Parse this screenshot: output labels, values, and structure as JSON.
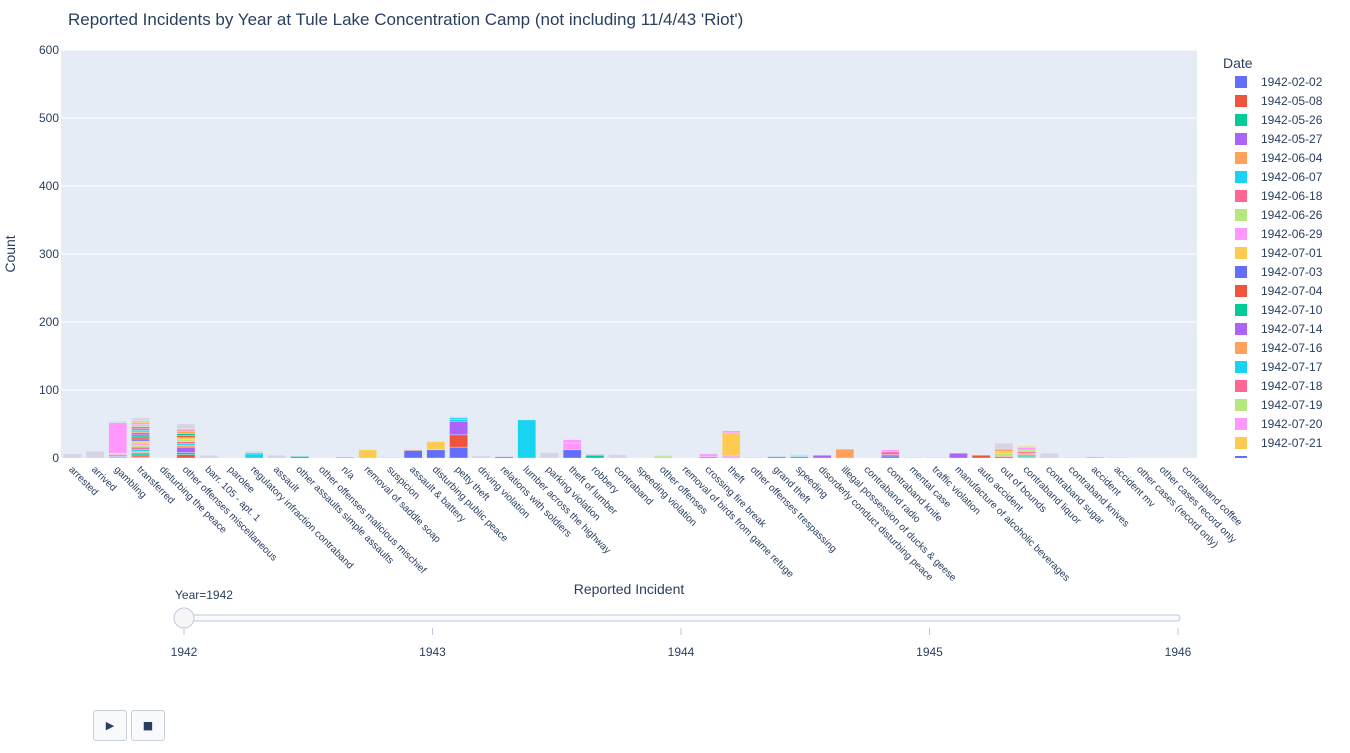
{
  "chart_data": {
    "type": "bar",
    "barmode": "stack",
    "title": "Reported Incidents by Year at Tule Lake Concentration Camp (not including 11/4/43 'Riot')",
    "xlabel": "Reported Incident",
    "ylabel": "Count",
    "ylim": [
      0,
      600
    ],
    "yticks": [
      0,
      100,
      200,
      300,
      400,
      500,
      600
    ],
    "grid": true,
    "legend": {
      "title": "Date",
      "position": "right"
    },
    "categories": [
      "arrested",
      "arrived",
      "gambling",
      "transferred",
      "disturbing the peace",
      "other offenses miscellaneous",
      "barr. 105 - apt. 1",
      "parolee",
      "regulatory infraction contraband",
      "assault",
      "other assaults simple assaults",
      "other offenses malicious mischief",
      "n/a",
      "removal of saddle soap",
      "suspicion",
      "assault & battery",
      "disturbing public peace",
      "petty theft",
      "driving violation",
      "relations with soldiers",
      "lumber across the highway",
      "parking violation",
      "theft of lumber",
      "robbery",
      "contraband",
      "speeding violation",
      "other offenses",
      "removal of birds from game refuge",
      "crossing fire break",
      "theft",
      "other offenses trespassing",
      "grand theft",
      "speeding",
      "disorderly conduct disturbing peace",
      "illegal possession of ducks & geese",
      "contraband radio",
      "contraband knife",
      "mental case",
      "traffic violation",
      "manufacture of alcoholic beverages",
      "auto accident",
      "out of bounds",
      "contraband liquor",
      "contraband sugar",
      "contraband knives",
      "accident",
      "accident mv",
      "other cases (record only)",
      "other cases record only",
      "contraband coffee"
    ],
    "series": [
      {
        "name": "1942-02-02",
        "color": "#636efa",
        "values": [
          0,
          0,
          1,
          1,
          0,
          0,
          0,
          0,
          0,
          0,
          2,
          0,
          0,
          0,
          0,
          11,
          12,
          16,
          0,
          0,
          0,
          0,
          12,
          0,
          0,
          0,
          0,
          0,
          0,
          0,
          0,
          0,
          0,
          0,
          0,
          0,
          3,
          0,
          0,
          0,
          0,
          0,
          1,
          0,
          0,
          0,
          0,
          0,
          0,
          0
        ]
      },
      {
        "name": "1942-05-08",
        "color": "#ef553b",
        "values": [
          0,
          0,
          0,
          2,
          0,
          5,
          0,
          0,
          0,
          0,
          0,
          0,
          1,
          0,
          0,
          1,
          0,
          18,
          0,
          0,
          0,
          0,
          0,
          0,
          0,
          0,
          0,
          0,
          0,
          0,
          0,
          0,
          0,
          0,
          0,
          0,
          0,
          0,
          0,
          0,
          4,
          0,
          1,
          0,
          0,
          1,
          0,
          0,
          0,
          0
        ]
      },
      {
        "name": "1942-05-26",
        "color": "#00cc96",
        "values": [
          0,
          0,
          1,
          3,
          0,
          3,
          0,
          0,
          0,
          0,
          1,
          0,
          0,
          0,
          0,
          0,
          0,
          0,
          0,
          2,
          0,
          0,
          0,
          4,
          0,
          0,
          0,
          0,
          0,
          0,
          0,
          2,
          2,
          0,
          0,
          0,
          0,
          0,
          0,
          0,
          0,
          2,
          2,
          0,
          0,
          0,
          0,
          0,
          0,
          0
        ]
      },
      {
        "name": "1942-05-27",
        "color": "#ab63fa",
        "values": [
          0,
          0,
          1,
          2,
          0,
          8,
          0,
          0,
          0,
          0,
          0,
          0,
          0,
          0,
          0,
          0,
          0,
          20,
          0,
          0,
          0,
          0,
          0,
          0,
          0,
          0,
          0,
          0,
          0,
          0,
          0,
          0,
          0,
          4,
          0,
          0,
          2,
          0,
          0,
          7,
          0,
          0,
          1,
          0,
          0,
          0,
          0,
          0,
          0,
          0
        ]
      },
      {
        "name": "1942-06-04",
        "color": "#ffa15a",
        "values": [
          0,
          0,
          0,
          2,
          0,
          3,
          0,
          0,
          0,
          0,
          0,
          0,
          0,
          0,
          0,
          0,
          0,
          0,
          0,
          0,
          0,
          0,
          0,
          0,
          0,
          0,
          0,
          0,
          0,
          0,
          0,
          0,
          0,
          0,
          13,
          0,
          0,
          0,
          0,
          0,
          0,
          2,
          2,
          0,
          0,
          0,
          0,
          0,
          0,
          0
        ]
      },
      {
        "name": "1942-06-07",
        "color": "#19d3f3",
        "values": [
          0,
          0,
          2,
          3,
          0,
          2,
          0,
          0,
          6,
          0,
          0,
          0,
          0,
          0,
          0,
          0,
          0,
          3,
          0,
          0,
          56,
          0,
          0,
          0,
          0,
          0,
          0,
          0,
          2,
          0,
          0,
          0,
          1,
          0,
          0,
          0,
          0,
          0,
          0,
          0,
          0,
          0,
          0,
          0,
          0,
          0,
          0,
          0,
          0,
          0
        ]
      },
      {
        "name": "1942-06-18",
        "color": "#ff6692",
        "values": [
          0,
          0,
          1,
          3,
          0,
          3,
          0,
          0,
          0,
          0,
          0,
          0,
          0,
          0,
          0,
          0,
          0,
          0,
          0,
          0,
          0,
          0,
          0,
          0,
          0,
          0,
          0,
          0,
          0,
          0,
          0,
          0,
          0,
          0,
          0,
          0,
          4,
          0,
          0,
          0,
          0,
          0,
          2,
          0,
          0,
          0,
          0,
          0,
          0,
          0
        ]
      },
      {
        "name": "1942-06-26",
        "color": "#b6e880",
        "values": [
          0,
          0,
          1,
          3,
          0,
          3,
          0,
          0,
          0,
          0,
          0,
          0,
          0,
          0,
          0,
          0,
          0,
          0,
          0,
          0,
          0,
          0,
          0,
          0,
          0,
          0,
          3,
          0,
          0,
          0,
          0,
          0,
          0,
          0,
          0,
          0,
          0,
          0,
          0,
          0,
          0,
          3,
          3,
          0,
          0,
          0,
          0,
          0,
          0,
          0
        ]
      },
      {
        "name": "1942-06-29",
        "color": "#ff97ff",
        "values": [
          0,
          0,
          45,
          3,
          0,
          0,
          0,
          0,
          0,
          0,
          0,
          0,
          0,
          0,
          0,
          0,
          0,
          0,
          0,
          0,
          0,
          0,
          10,
          0,
          0,
          0,
          0,
          0,
          4,
          3,
          0,
          0,
          0,
          0,
          0,
          0,
          3,
          0,
          0,
          0,
          0,
          0,
          3,
          0,
          0,
          0,
          0,
          0,
          0,
          0
        ]
      },
      {
        "name": "1942-07-01",
        "color": "#fecb52",
        "values": [
          0,
          0,
          0,
          3,
          0,
          3,
          0,
          0,
          0,
          0,
          0,
          0,
          0,
          12,
          0,
          0,
          12,
          0,
          0,
          0,
          0,
          0,
          0,
          0,
          0,
          0,
          0,
          0,
          0,
          34,
          0,
          0,
          0,
          0,
          0,
          0,
          0,
          0,
          0,
          0,
          0,
          3,
          2,
          0,
          0,
          0,
          0,
          0,
          0,
          0
        ]
      },
      {
        "name": "1942-07-03",
        "color": "#636efa",
        "values": [
          0,
          0,
          0,
          3,
          0,
          0,
          0,
          0,
          0,
          0,
          0,
          0,
          0,
          0,
          0,
          0,
          0,
          0,
          0,
          0,
          0,
          0,
          0,
          0,
          0,
          0,
          0,
          0,
          0,
          0,
          0,
          0,
          0,
          0,
          0,
          0,
          0,
          0,
          0,
          0,
          0,
          0,
          0,
          0,
          0,
          0,
          0,
          0,
          0,
          0
        ]
      },
      {
        "name": "1942-07-04",
        "color": "#ef553b",
        "values": [
          0,
          0,
          0,
          3,
          0,
          3,
          0,
          0,
          0,
          0,
          0,
          0,
          0,
          0,
          0,
          0,
          0,
          0,
          0,
          0,
          0,
          0,
          0,
          0,
          0,
          0,
          0,
          0,
          0,
          0,
          0,
          0,
          0,
          0,
          0,
          0,
          0,
          0,
          0,
          0,
          0,
          0,
          0,
          0,
          0,
          0,
          0,
          0,
          0,
          0
        ]
      },
      {
        "name": "1942-07-10",
        "color": "#00cc96",
        "values": [
          0,
          0,
          0,
          3,
          0,
          3,
          0,
          0,
          0,
          0,
          0,
          0,
          0,
          0,
          0,
          0,
          0,
          0,
          0,
          0,
          0,
          0,
          0,
          0,
          0,
          0,
          0,
          0,
          0,
          0,
          0,
          0,
          0,
          0,
          0,
          0,
          0,
          0,
          0,
          0,
          0,
          0,
          0,
          0,
          0,
          0,
          0,
          0,
          0,
          0
        ]
      },
      {
        "name": "1942-07-14",
        "color": "#ab63fa",
        "values": [
          0,
          0,
          0,
          3,
          0,
          0,
          0,
          0,
          0,
          0,
          0,
          0,
          0,
          0,
          0,
          0,
          0,
          0,
          0,
          0,
          0,
          0,
          0,
          0,
          0,
          0,
          0,
          0,
          0,
          0,
          0,
          0,
          0,
          0,
          0,
          0,
          0,
          0,
          0,
          0,
          0,
          0,
          0,
          0,
          0,
          0,
          0,
          0,
          0,
          0
        ]
      },
      {
        "name": "1942-07-16",
        "color": "#ffa15a",
        "values": [
          0,
          0,
          0,
          3,
          0,
          3,
          0,
          0,
          0,
          0,
          0,
          0,
          0,
          0,
          0,
          0,
          0,
          0,
          0,
          0,
          0,
          0,
          0,
          0,
          0,
          0,
          0,
          0,
          0,
          0,
          0,
          0,
          0,
          0,
          0,
          0,
          0,
          0,
          0,
          0,
          0,
          3,
          0,
          0,
          0,
          0,
          0,
          0,
          0,
          0
        ]
      },
      {
        "name": "1942-07-17",
        "color": "#19d3f3",
        "values": [
          0,
          0,
          0,
          3,
          0,
          0,
          0,
          0,
          2,
          0,
          0,
          0,
          0,
          0,
          0,
          0,
          0,
          2,
          0,
          0,
          0,
          0,
          0,
          0,
          0,
          0,
          0,
          0,
          0,
          0,
          0,
          0,
          0,
          0,
          0,
          0,
          0,
          0,
          0,
          0,
          0,
          0,
          0,
          0,
          0,
          0,
          0,
          0,
          0,
          0
        ]
      },
      {
        "name": "1942-07-18",
        "color": "#ff6692",
        "values": [
          0,
          0,
          0,
          3,
          0,
          2,
          0,
          0,
          0,
          0,
          0,
          0,
          0,
          0,
          0,
          0,
          0,
          0,
          0,
          0,
          0,
          0,
          0,
          0,
          0,
          0,
          0,
          0,
          0,
          0,
          0,
          0,
          0,
          0,
          0,
          0,
          0,
          0,
          0,
          0,
          0,
          0,
          0,
          0,
          0,
          0,
          0,
          0,
          0,
          0
        ]
      },
      {
        "name": "1942-07-19",
        "color": "#b6e880",
        "values": [
          0,
          0,
          0,
          3,
          0,
          2,
          0,
          0,
          0,
          0,
          0,
          0,
          0,
          0,
          0,
          0,
          0,
          0,
          0,
          0,
          0,
          0,
          0,
          0,
          0,
          0,
          0,
          0,
          0,
          0,
          0,
          0,
          0,
          0,
          0,
          0,
          0,
          0,
          0,
          0,
          0,
          0,
          0,
          0,
          0,
          0,
          0,
          0,
          0,
          0
        ]
      },
      {
        "name": "1942-07-20",
        "color": "#ff97ff",
        "values": [
          0,
          0,
          0,
          3,
          0,
          0,
          0,
          0,
          0,
          0,
          0,
          0,
          0,
          0,
          0,
          0,
          0,
          0,
          0,
          0,
          0,
          0,
          5,
          0,
          0,
          0,
          0,
          0,
          0,
          3,
          0,
          0,
          0,
          0,
          0,
          0,
          0,
          0,
          0,
          0,
          0,
          0,
          0,
          0,
          0,
          0,
          0,
          0,
          0,
          0
        ]
      },
      {
        "name": "1942-07-21",
        "color": "#fecb52",
        "values": [
          0,
          0,
          0,
          3,
          0,
          0,
          0,
          0,
          0,
          0,
          0,
          0,
          0,
          0,
          0,
          0,
          0,
          0,
          0,
          0,
          0,
          0,
          0,
          0,
          0,
          0,
          0,
          0,
          0,
          0,
          0,
          0,
          0,
          0,
          0,
          0,
          0,
          0,
          0,
          0,
          0,
          0,
          0,
          0,
          0,
          0,
          0,
          0,
          0,
          0
        ]
      }
    ],
    "remaining_stack_totals": [
      6,
      10,
      2,
      4,
      0,
      7,
      4,
      0,
      2,
      4,
      0,
      0,
      0,
      1,
      1,
      1,
      1,
      2,
      3,
      1,
      0,
      8,
      0,
      2,
      5,
      0,
      1,
      0,
      0,
      0,
      1,
      0,
      2,
      0,
      0,
      0,
      0,
      1,
      1,
      0,
      0,
      9,
      0,
      7,
      1,
      1,
      1,
      0,
      0,
      0
    ],
    "remaining_stack_color": "#d9d4e3"
  },
  "slider": {
    "current_label": "Year=1942",
    "current_value": 1942,
    "range": [
      1942,
      1946
    ],
    "ticks": [
      "1942",
      "1943",
      "1944",
      "1945",
      "1946"
    ]
  },
  "controls": {
    "play_label": "▶",
    "stop_label": "■"
  }
}
